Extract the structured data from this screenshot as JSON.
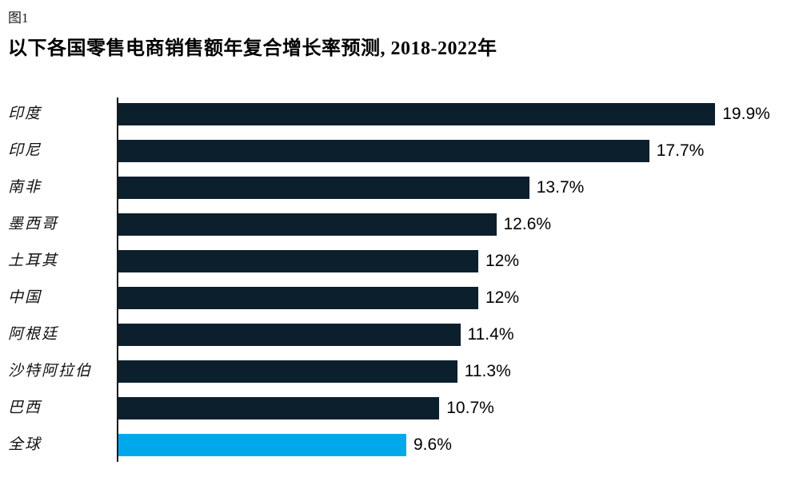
{
  "figure_label": "图1",
  "title": "以下各国零售电商销售额年复合增长率预测, 2018-2022年",
  "chart_data": {
    "type": "bar",
    "orientation": "horizontal",
    "title": "以下各国零售电商销售额年复合增长率预测, 2018-2022年",
    "categories": [
      "印度",
      "印尼",
      "南非",
      "墨西哥",
      "土耳其",
      "中国",
      "阿根廷",
      "沙特阿拉伯",
      "巴西",
      "全球"
    ],
    "values": [
      19.9,
      17.7,
      13.7,
      12.6,
      12,
      12,
      11.4,
      11.3,
      10.7,
      9.6
    ],
    "value_labels": [
      "19.9%",
      "17.7%",
      "13.7%",
      "12.6%",
      "12%",
      "12%",
      "11.4%",
      "11.3%",
      "10.7%",
      "9.6%"
    ],
    "unit": "%",
    "xlim": [
      0,
      22
    ],
    "grid": false,
    "legend": false,
    "bar_color": "#0c1f2d",
    "highlight_color": "#00a9ec",
    "highlight_index": 9
  }
}
